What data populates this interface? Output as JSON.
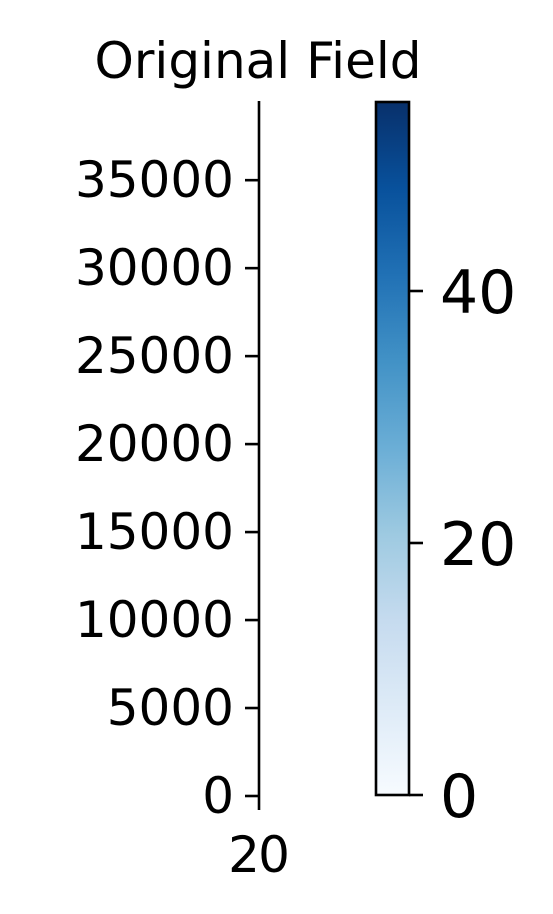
{
  "chart_data": {
    "type": "heatmap",
    "title": "Original Field",
    "xlabel": "",
    "ylabel": "",
    "x_ticks": [
      "2",
      "0"
    ],
    "y_ticks": [
      0,
      5000,
      10000,
      15000,
      20000,
      25000,
      30000,
      35000
    ],
    "y_tick_labels": [
      "0",
      "5000",
      "10000",
      "15000",
      "20000",
      "25000",
      "30000",
      "35000"
    ],
    "ylim": [
      0,
      39500
    ],
    "grid": false,
    "colorbar": {
      "colormap": "Blues",
      "range": [
        0,
        55
      ],
      "ticks": [
        0,
        20,
        40
      ],
      "tick_labels": [
        "0",
        "20",
        "40"
      ],
      "color_stops": [
        "#f7fbff",
        "#deebf7",
        "#c6dbef",
        "#9ecae1",
        "#6baed6",
        "#4292c6",
        "#2171b5",
        "#08519c",
        "#08306b"
      ]
    }
  }
}
